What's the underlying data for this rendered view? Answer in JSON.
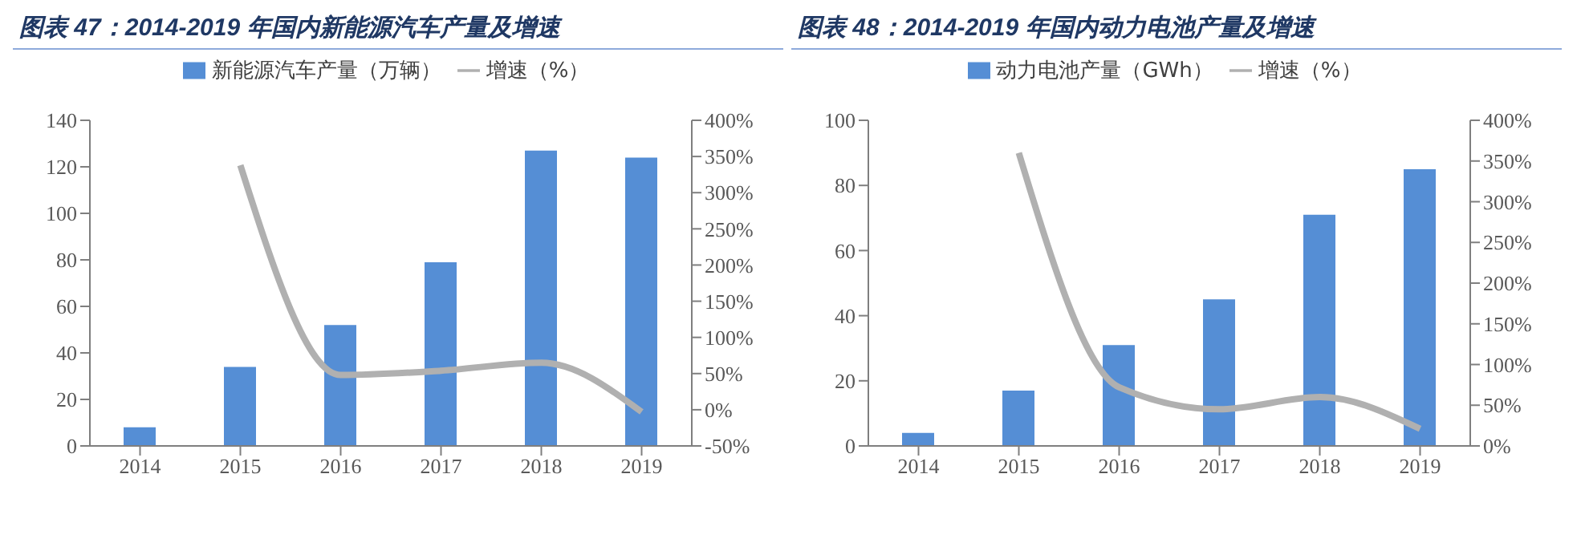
{
  "chart_data": [
    {
      "type": "bar",
      "title": "图表 47：2014-2019 年国内新能源汽车产量及增速",
      "categories": [
        "2014",
        "2015",
        "2016",
        "2017",
        "2018",
        "2019"
      ],
      "series": [
        {
          "name": "新能源汽车产量（万辆）",
          "color": "#558ed5",
          "values": [
            8,
            34,
            52,
            79,
            127,
            124
          ]
        },
        {
          "name": "增速（%）",
          "type": "line",
          "axis": "y2",
          "color": "#b0b0b0",
          "values": [
            null,
            338,
            48,
            54,
            65,
            -3
          ]
        }
      ],
      "ylim": [
        0,
        140
      ],
      "yticks": [
        0,
        20,
        40,
        60,
        80,
        100,
        120,
        140
      ],
      "y2lim": [
        -50,
        400
      ],
      "y2ticks": [
        {
          "value": -50,
          "label": "-50%"
        },
        {
          "value": 0,
          "label": "0%"
        },
        {
          "value": 50,
          "label": "50%"
        },
        {
          "value": 100,
          "label": "100%"
        },
        {
          "value": 150,
          "label": "150%"
        },
        {
          "value": 200,
          "label": "200%"
        },
        {
          "value": 250,
          "label": "250%"
        },
        {
          "value": 300,
          "label": "300%"
        },
        {
          "value": 350,
          "label": "350%"
        },
        {
          "value": 400,
          "label": "400%"
        }
      ],
      "legend": "top",
      "marker": "none",
      "grid": false
    },
    {
      "type": "bar",
      "title": "图表 48：2014-2019 年国内动力电池产量及增速",
      "categories": [
        "2014",
        "2015",
        "2016",
        "2017",
        "2018",
        "2019"
      ],
      "series": [
        {
          "name": "动力电池产量（GWh）",
          "color": "#558ed5",
          "values": [
            4,
            17,
            31,
            45,
            71,
            85
          ]
        },
        {
          "name": "增速（%）",
          "type": "line",
          "axis": "y2",
          "color": "#b0b0b0",
          "values": [
            null,
            360,
            72,
            45,
            60,
            21
          ]
        }
      ],
      "ylim": [
        0,
        100
      ],
      "yticks": [
        0,
        20,
        40,
        60,
        80,
        100
      ],
      "y2lim": [
        0,
        400
      ],
      "y2ticks": [
        {
          "value": 0,
          "label": "0%"
        },
        {
          "value": 50,
          "label": "50%"
        },
        {
          "value": 100,
          "label": "100%"
        },
        {
          "value": 150,
          "label": "150%"
        },
        {
          "value": 200,
          "label": "200%"
        },
        {
          "value": 250,
          "label": "250%"
        },
        {
          "value": 300,
          "label": "300%"
        },
        {
          "value": 350,
          "label": "350%"
        },
        {
          "value": 400,
          "label": "400%"
        }
      ],
      "legend": "top",
      "marker": "none",
      "grid": false
    }
  ]
}
